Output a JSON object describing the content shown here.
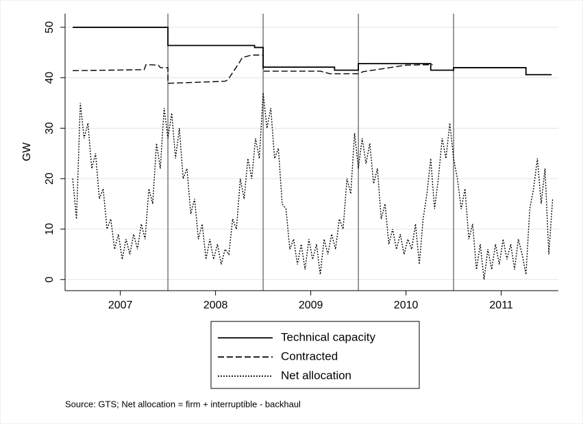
{
  "chart_data": {
    "type": "line",
    "ylabel": "GW",
    "note": "Source: GTS; Net allocation = firm + interruptible - backhaul",
    "xlim": [
      2006.92,
      2012.1
    ],
    "ylim": [
      -2.2,
      52.7
    ],
    "yticks": [
      0,
      10,
      20,
      30,
      40,
      50
    ],
    "xticks": [
      {
        "value": 2007.5,
        "label": "2007"
      },
      {
        "value": 2008.5,
        "label": "2008"
      },
      {
        "value": 2009.5,
        "label": "2009"
      },
      {
        "value": 2010.5,
        "label": "2010"
      },
      {
        "value": 2011.5,
        "label": "2011"
      }
    ],
    "xlines": [
      2008,
      2009,
      2010,
      2011
    ],
    "grid": true,
    "legend": "bottom",
    "series": [
      {
        "name": "Technical capacity",
        "color": "#000000",
        "style": "solid",
        "x": [
          2007,
          2008,
          2008,
          2008.91,
          2008.91,
          2009,
          2009,
          2009.75,
          2009.75,
          2010,
          2010,
          2010.76,
          2010.76,
          2011,
          2011,
          2011.76,
          2011.76,
          2012.03
        ],
        "values": [
          50,
          50,
          46.4,
          46.4,
          46.0,
          46.0,
          42.1,
          42.1,
          41.5,
          41.5,
          42.8,
          42.8,
          41.5,
          41.5,
          42.0,
          42.0,
          40.6,
          40.6
        ]
      },
      {
        "name": "Contracted",
        "color": "#000000",
        "style": "dash",
        "x": [
          2007,
          2007.75,
          2007.77,
          2007.9,
          2007.92,
          2008,
          2008,
          2008.6,
          2008.63,
          2008.75,
          2008.78,
          2008.88,
          2009,
          2009,
          2009.6,
          2009.7,
          2010,
          2010.05,
          2010.5,
          2010.78
        ],
        "values": [
          41.4,
          41.6,
          42.6,
          42.5,
          42.0,
          42.0,
          38.9,
          39.3,
          39.6,
          43.0,
          44.0,
          44.5,
          44.5,
          41.3,
          41.3,
          40.8,
          40.8,
          41.2,
          42.5,
          42.6
        ]
      },
      {
        "name": "Net allocation",
        "color": "#000000",
        "style": "dot",
        "x": [
          2007,
          2007.04,
          2007.08,
          2007.12,
          2007.16,
          2007.2,
          2007.24,
          2007.28,
          2007.32,
          2007.36,
          2007.4,
          2007.44,
          2007.48,
          2007.52,
          2007.56,
          2007.6,
          2007.64,
          2007.68,
          2007.72,
          2007.76,
          2007.8,
          2007.84,
          2007.88,
          2007.92,
          2007.96,
          2008,
          2008.04,
          2008.08,
          2008.12,
          2008.16,
          2008.2,
          2008.24,
          2008.28,
          2008.32,
          2008.36,
          2008.4,
          2008.44,
          2008.48,
          2008.52,
          2008.56,
          2008.6,
          2008.64,
          2008.68,
          2008.72,
          2008.76,
          2008.8,
          2008.84,
          2008.88,
          2008.92,
          2008.96,
          2009,
          2009.04,
          2009.08,
          2009.12,
          2009.16,
          2009.2,
          2009.24,
          2009.28,
          2009.32,
          2009.36,
          2009.4,
          2009.44,
          2009.48,
          2009.52,
          2009.56,
          2009.6,
          2009.64,
          2009.68,
          2009.72,
          2009.76,
          2009.8,
          2009.84,
          2009.88,
          2009.92,
          2009.96,
          2010,
          2010.04,
          2010.08,
          2010.12,
          2010.16,
          2010.2,
          2010.24,
          2010.28,
          2010.32,
          2010.36,
          2010.4,
          2010.44,
          2010.48,
          2010.52,
          2010.56,
          2010.6,
          2010.64,
          2010.68,
          2010.72,
          2010.76,
          2010.8,
          2010.84,
          2010.88,
          2010.92,
          2010.96,
          2011,
          2011.04,
          2011.08,
          2011.12,
          2011.16,
          2011.2,
          2011.24,
          2011.28,
          2011.32,
          2011.36,
          2011.4,
          2011.44,
          2011.48,
          2011.52,
          2011.56,
          2011.6,
          2011.64,
          2011.68,
          2011.72,
          2011.76,
          2011.8,
          2011.84,
          2011.88,
          2011.92,
          2011.96,
          2012,
          2012.04
        ],
        "values": [
          20,
          12,
          35,
          28,
          31,
          22,
          25,
          16,
          18,
          10,
          12,
          6,
          9,
          4,
          8,
          5,
          9,
          6,
          11,
          8,
          18,
          15,
          27,
          22,
          34,
          28,
          33,
          24,
          30,
          20,
          22,
          13,
          16,
          8,
          11,
          4,
          8,
          4,
          7,
          3,
          6,
          5,
          12,
          10,
          20,
          16,
          24,
          20,
          28,
          24,
          37,
          30,
          34,
          24,
          26,
          15,
          14,
          6,
          8,
          3,
          7,
          2,
          8,
          4,
          7,
          1,
          8,
          5,
          9,
          6,
          12,
          10,
          20,
          17,
          29,
          22,
          28,
          23,
          27,
          19,
          22,
          12,
          15,
          7,
          10,
          6,
          9,
          5,
          8,
          6,
          11,
          3,
          12,
          17,
          24,
          14,
          20,
          28,
          24,
          31,
          24,
          20,
          14,
          18,
          8,
          11,
          2,
          7,
          0,
          6,
          2,
          7,
          3,
          8,
          4,
          7,
          2,
          8,
          5,
          1,
          14,
          18,
          24,
          15,
          22,
          5,
          16
        ]
      }
    ]
  }
}
